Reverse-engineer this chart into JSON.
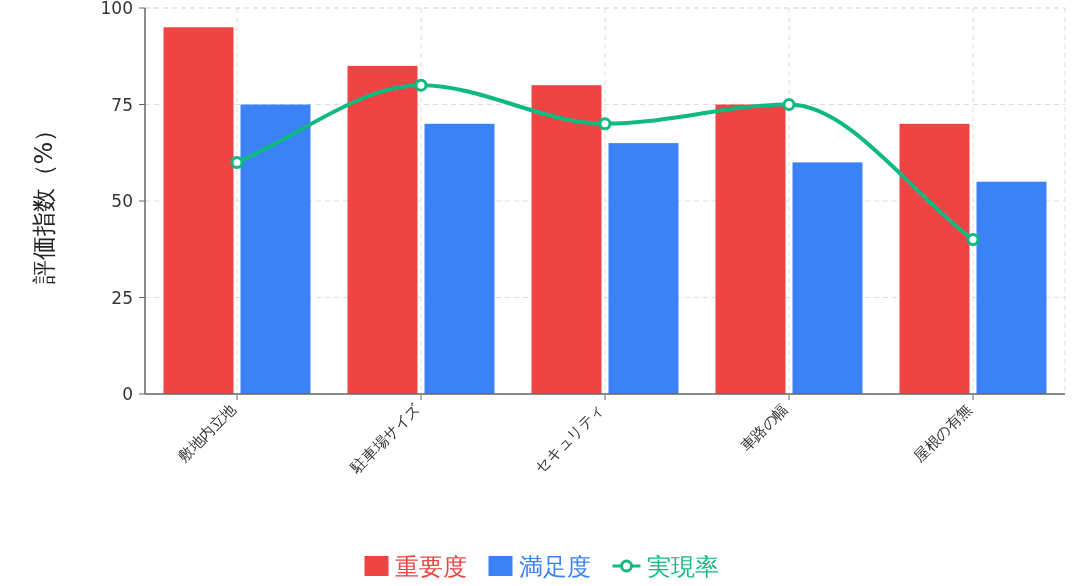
{
  "chart_data": {
    "type": "bar",
    "ylabel": "評価指数（%）",
    "categories": [
      "敷地内立地",
      "駐車場サイズ",
      "セキュリティ",
      "車路の幅",
      "屋根の有無"
    ],
    "series": [
      {
        "name": "重要度",
        "color": "#ef4444",
        "values": [
          95,
          85,
          80,
          75,
          70
        ]
      },
      {
        "name": "満足度",
        "color": "#3b82f6",
        "values": [
          75,
          70,
          65,
          60,
          55
        ]
      },
      {
        "name": "実現率",
        "type": "line",
        "color": "#10b981",
        "marker": "circle",
        "values": [
          60,
          80,
          70,
          75,
          40
        ]
      }
    ],
    "ylim": [
      0,
      100
    ],
    "yticks": [
      0,
      25,
      50,
      75,
      100
    ],
    "grid": true,
    "legend": "bottom"
  }
}
